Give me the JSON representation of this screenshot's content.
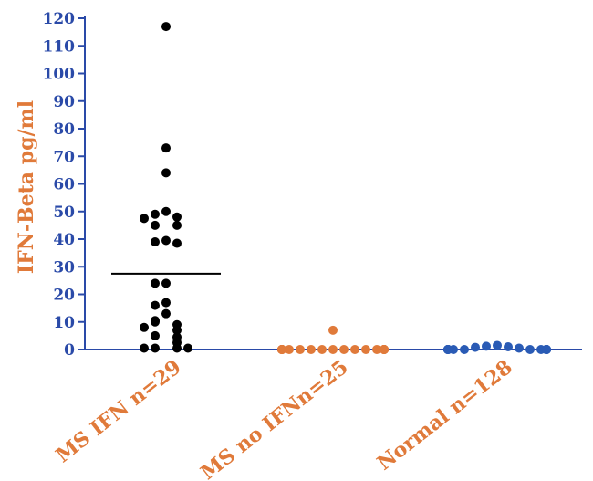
{
  "chart_data": {
    "type": "scatter",
    "ylabel": "IFN-Beta pg/ml",
    "ylim": [
      0,
      120
    ],
    "yticks": [
      0,
      10,
      20,
      30,
      40,
      50,
      60,
      70,
      80,
      90,
      100,
      110,
      120
    ],
    "categories": [
      "MS IFN n=29",
      "MS no IFNn=25",
      "Normal n=128"
    ],
    "axis_color": "#2a4aa8",
    "label_color": "#e07a3a",
    "series": [
      {
        "category": "MS IFN n=29",
        "color": "#000000",
        "mean_line": 27.5,
        "points": [
          117,
          73,
          64,
          50,
          49,
          48,
          47.5,
          45,
          45,
          39.5,
          39,
          38.5,
          24,
          24,
          17,
          16,
          13,
          10.5,
          10,
          9,
          8,
          7,
          5,
          4.5,
          2.5,
          0.5,
          0.5,
          0.5,
          0.5
        ]
      },
      {
        "category": "MS no IFNn=25",
        "color": "#e07a3a",
        "points": [
          7,
          0,
          0,
          0,
          0,
          0,
          0,
          0,
          0,
          0,
          0,
          0,
          0,
          0,
          0,
          0,
          0,
          0,
          0,
          0,
          0,
          0,
          0,
          0,
          0
        ]
      },
      {
        "category": "Normal n=128",
        "color": "#2a5bb5",
        "points": [
          1.5,
          1.2,
          1,
          0.8,
          0.5,
          0,
          0,
          0,
          0,
          0,
          0,
          0,
          0,
          0,
          0,
          0,
          0,
          0,
          0,
          0
        ]
      }
    ]
  }
}
